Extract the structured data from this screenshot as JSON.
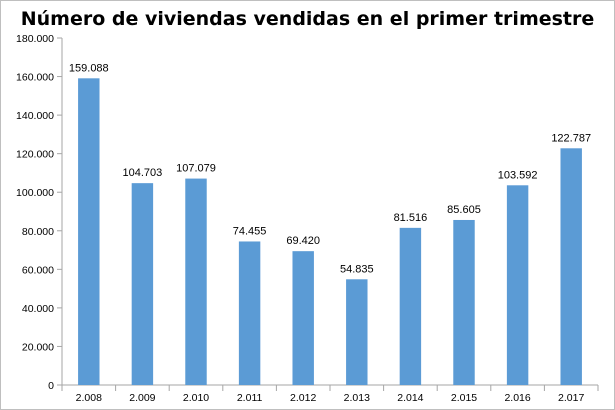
{
  "chart_data": {
    "type": "bar",
    "title": "Número de viviendas vendidas en el primer trimestre",
    "xlabel": "",
    "ylabel": "",
    "categories": [
      "2.008",
      "2.009",
      "2.010",
      "2.011",
      "2.012",
      "2.013",
      "2.014",
      "2.015",
      "2.016",
      "2.017"
    ],
    "values": [
      159088,
      104703,
      107079,
      74455,
      69420,
      54835,
      81516,
      85605,
      103592,
      122787
    ],
    "value_labels": [
      "159.088",
      "104.703",
      "107.079",
      "74.455",
      "69.420",
      "54.835",
      "81.516",
      "85.605",
      "103.592",
      "122.787"
    ],
    "ylim": [
      0,
      180000
    ],
    "yticks": [
      0,
      20000,
      40000,
      60000,
      80000,
      100000,
      120000,
      140000,
      160000,
      180000
    ],
    "ytick_labels": [
      "0",
      "20.000",
      "40.000",
      "60.000",
      "80.000",
      "100.000",
      "120.000",
      "140.000",
      "160.000",
      "180.000"
    ],
    "grid": false,
    "legend": "none",
    "bar_color": "#5b9bd5"
  }
}
